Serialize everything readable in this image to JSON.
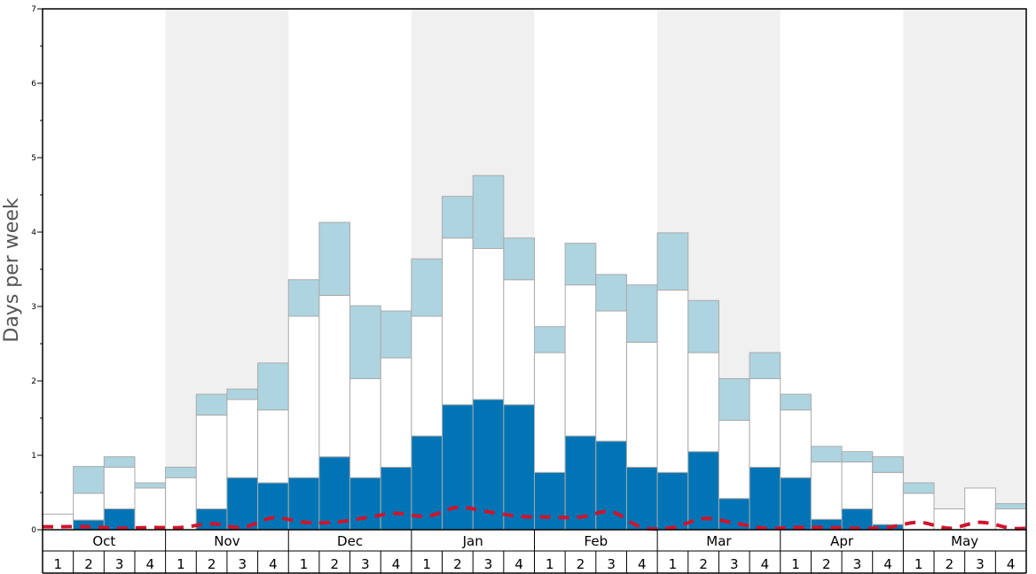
{
  "chart_data": {
    "type": "bar",
    "stacked": true,
    "ylabel": "Days per week",
    "ylim": [
      0,
      7
    ],
    "yticks": [
      "0",
      "1",
      "2",
      "3",
      "4",
      "5",
      "6",
      "7"
    ],
    "months": [
      "Oct",
      "Nov",
      "Dec",
      "Jan",
      "Feb",
      "Mar",
      "Apr",
      "May"
    ],
    "weeks": [
      "1",
      "2",
      "3",
      "4"
    ],
    "colors": {
      "dark": "#0074b5",
      "white": "#ffffff",
      "light": "#aed4e0",
      "band": "#f0f0f0",
      "line": "#d0142c",
      "bar_stroke": "#aaaaaa"
    },
    "segments": {
      "dark": [
        0.0,
        0.13,
        0.28,
        0.0,
        0.0,
        0.28,
        0.7,
        0.63,
        0.7,
        0.98,
        0.7,
        0.84,
        1.26,
        1.68,
        1.75,
        1.68,
        0.77,
        1.26,
        1.19,
        0.84,
        0.77,
        1.05,
        0.42,
        0.84,
        0.7,
        0.14,
        0.28,
        0.07,
        0.0,
        0.0,
        0.0,
        0.0
      ],
      "white": [
        0.21,
        0.36,
        0.56,
        0.56,
        0.7,
        1.26,
        1.05,
        0.98,
        2.17,
        2.17,
        1.33,
        1.47,
        1.61,
        2.24,
        2.03,
        1.68,
        1.61,
        2.03,
        1.75,
        1.68,
        2.45,
        1.33,
        1.05,
        1.19,
        0.91,
        0.77,
        0.63,
        0.7,
        0.49,
        0.28,
        0.56,
        0.28
      ],
      "light": [
        0.0,
        0.36,
        0.14,
        0.07,
        0.14,
        0.28,
        0.14,
        0.63,
        0.49,
        0.98,
        0.98,
        0.63,
        0.77,
        0.56,
        0.98,
        0.56,
        0.35,
        0.56,
        0.49,
        0.77,
        0.77,
        0.7,
        0.56,
        0.35,
        0.21,
        0.21,
        0.14,
        0.21,
        0.14,
        0.0,
        0.0,
        0.07
      ]
    },
    "line": [
      0.04,
      0.04,
      0.02,
      0.03,
      0.03,
      0.08,
      0.03,
      0.16,
      0.1,
      0.1,
      0.16,
      0.22,
      0.18,
      0.3,
      0.24,
      0.18,
      0.17,
      0.17,
      0.24,
      0.03,
      0.03,
      0.15,
      0.09,
      0.02,
      0.03,
      0.03,
      0.02,
      0.03,
      0.1,
      0.02,
      0.1,
      0.02
    ]
  }
}
